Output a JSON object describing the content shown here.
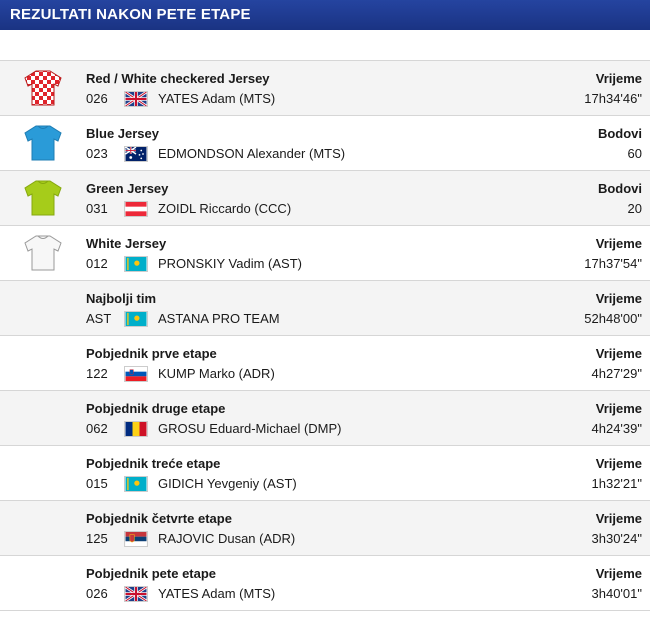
{
  "header": {
    "title": "REZULTATI NAKON PETE ETAPE"
  },
  "rows": [
    {
      "title": "Red / White checkered Jersey",
      "code": "026",
      "flag": "gb",
      "name": "YATES Adam (MTS)",
      "label": "Vrijeme",
      "value": "17h34'46\"",
      "jersey": "checkered-jersey-icon"
    },
    {
      "title": "Blue Jersey",
      "code": "023",
      "flag": "au",
      "name": "EDMONDSON Alexander (MTS)",
      "label": "Bodovi",
      "value": "60",
      "jersey": "blue-jersey-icon"
    },
    {
      "title": "Green Jersey",
      "code": "031",
      "flag": "at",
      "name": "ZOIDL Riccardo (CCC)",
      "label": "Bodovi",
      "value": "20",
      "jersey": "green-jersey-icon"
    },
    {
      "title": "White Jersey",
      "code": "012",
      "flag": "kz",
      "name": "PRONSKIY Vadim (AST)",
      "label": "Vrijeme",
      "value": "17h37'54\"",
      "jersey": "white-jersey-icon"
    },
    {
      "title": "Najbolji tim",
      "code": "AST",
      "flag": "kz",
      "name": "ASTANA PRO TEAM",
      "label": "Vrijeme",
      "value": "52h48'00\""
    },
    {
      "title": "Pobjednik prve etape",
      "code": "122",
      "flag": "si",
      "name": "KUMP Marko (ADR)",
      "label": "Vrijeme",
      "value": "4h27'29\""
    },
    {
      "title": "Pobjednik druge etape",
      "code": "062",
      "flag": "ro",
      "name": "GROSU Eduard-Michael (DMP)",
      "label": "Vrijeme",
      "value": "4h24'39\""
    },
    {
      "title": "Pobjednik treće etape",
      "code": "015",
      "flag": "kz",
      "name": "GIDICH Yevgeniy (AST)",
      "label": "Vrijeme",
      "value": "1h32'21\""
    },
    {
      "title": "Pobjednik četvrte etape",
      "code": "125",
      "flag": "rs",
      "name": "RAJOVIC Dusan (ADR)",
      "label": "Vrijeme",
      "value": "3h30'24\""
    },
    {
      "title": "Pobjednik pete etape",
      "code": "026",
      "flag": "gb",
      "name": "YATES Adam (MTS)",
      "label": "Vrijeme",
      "value": "3h40'01\""
    }
  ],
  "colors": {
    "header_bg": "#1f3a8a",
    "blue_jersey": "#2a9bd8",
    "green_jersey": "#a6cc1a",
    "red_jersey": "#e0242b"
  }
}
